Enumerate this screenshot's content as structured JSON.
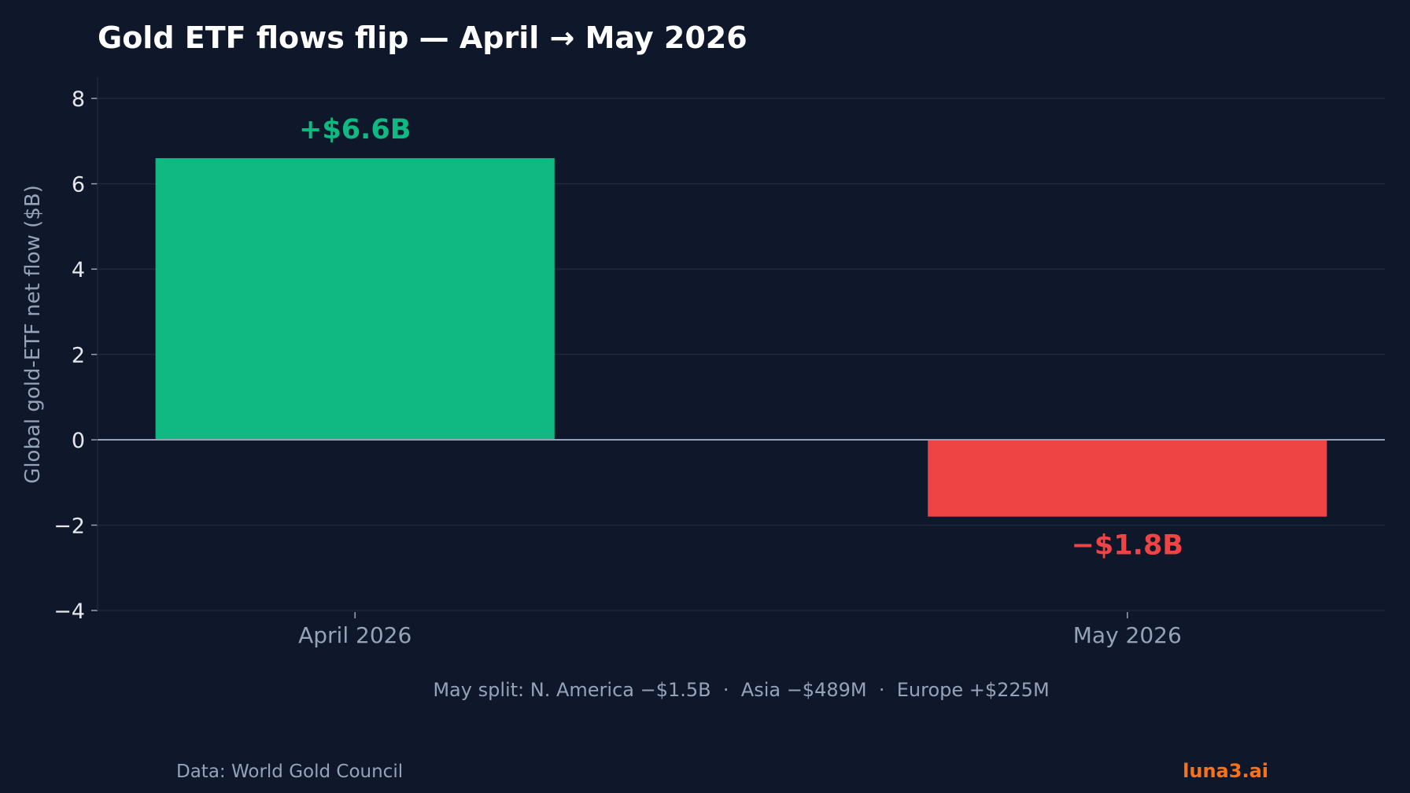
{
  "chart_data": {
    "type": "bar",
    "title": "Gold ETF flows flip — April → May 2026",
    "ylabel": "Global gold-ETF net flow ($B)",
    "xlabel": "",
    "categories": [
      "April 2026",
      "May 2026"
    ],
    "values": [
      6.6,
      -1.8
    ],
    "value_labels": [
      "+$6.6B",
      "−$1.8B"
    ],
    "bar_colors": [
      "#10b981",
      "#ef4444"
    ],
    "ylim": [
      -4,
      8.5
    ],
    "yticks": [
      8,
      6,
      4,
      2,
      0,
      -2,
      -4
    ],
    "ytick_labels": [
      "8",
      "6",
      "4",
      "2",
      "0",
      "−2",
      "−4"
    ],
    "grid": true,
    "annotation": "May split: N. America −$1.5B  ·  Asia −$489M  ·  Europe +$225M"
  },
  "footer": {
    "source": "Data: World Gold Council",
    "brand": "luna3.ai"
  },
  "colors": {
    "background": "#0f172a",
    "grid": "#1f2937",
    "zero_line": "#94a3b8",
    "title": "#ffffff",
    "muted_text": "#94a3b8",
    "tick_text": "#e5e7eb",
    "positive": "#10b981",
    "negative": "#ef4444",
    "brand": "#f97316"
  }
}
